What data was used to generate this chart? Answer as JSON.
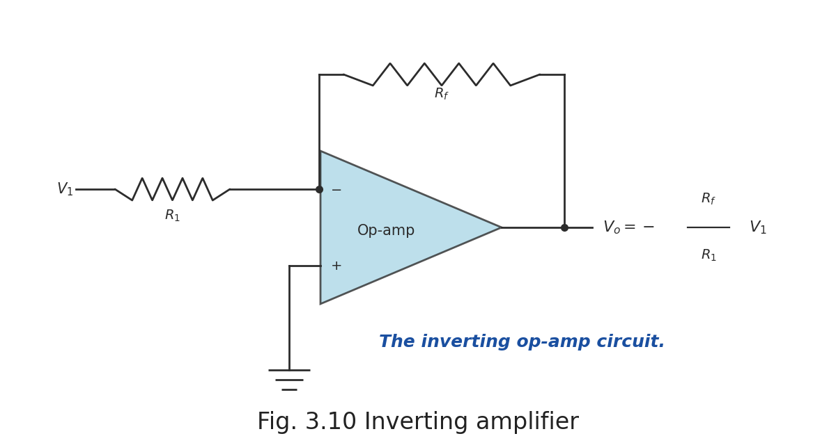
{
  "background_color": "#ffffff",
  "opamp_fill": "#add8e6",
  "line_color": "#2c2c2c",
  "line_width": 2.0,
  "text_color": "#2c2c2c",
  "blue_italic_color": "#1a4fa0",
  "fig_caption": "Fig. 3.10 Inverting amplifier",
  "caption_fontsize": 24,
  "italic_text": "The inverting op-amp circuit.",
  "italic_fontsize": 18,
  "opamp_label": "Op-amp",
  "opamp_label_fontsize": 15
}
